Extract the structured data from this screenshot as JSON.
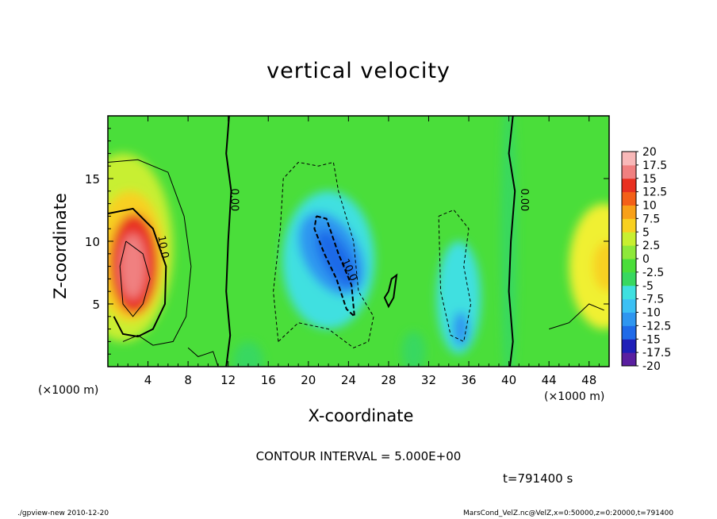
{
  "colors": {
    "scale": [
      "#5a1fa0",
      "#1f1fb8",
      "#1f3fd8",
      "#1f6ae8",
      "#2f96f0",
      "#3cc0f4",
      "#3fe0e0",
      "#3ee0a8",
      "#38d860",
      "#4ade3a",
      "#8ee83a",
      "#c8ef30",
      "#f0f030",
      "#f8d020",
      "#f8a018",
      "#f46018",
      "#e83020",
      "#e85050",
      "#f08080",
      "#f8b8b8"
    ]
  },
  "chart_data": {
    "type": "heatmap",
    "title": "vertical velocity",
    "xlabel": "X-coordinate",
    "ylabel": "Z-coordinate",
    "x_unit_label": "(×1000 m)",
    "y_unit_label": "(×1000 m)",
    "xlim": [
      0,
      50
    ],
    "ylim": [
      0,
      20
    ],
    "x_ticks": [
      4,
      8,
      12,
      16,
      20,
      24,
      28,
      32,
      36,
      40,
      44,
      48
    ],
    "y_ticks": [
      5,
      10,
      15
    ],
    "colorbar": {
      "levels": [
        -20,
        -17.5,
        -15,
        -12.5,
        -10,
        -7.5,
        -5,
        -2.5,
        0,
        2.5,
        5,
        7.5,
        10,
        12.5,
        15,
        17.5,
        20
      ],
      "level_labels": [
        "-20",
        "-17.5",
        "-15",
        "-12.5",
        "-10",
        "-7.5",
        "-5",
        "-2.5",
        "0",
        "2.5",
        "5",
        "7.5",
        "10",
        "12.5",
        "15",
        "17.5",
        "20"
      ]
    },
    "contour_labels": [
      {
        "text": "0.00",
        "x": 12.3,
        "z": 13.3,
        "angle": 90
      },
      {
        "text": "10.0",
        "x": 5.2,
        "z": 9.5,
        "angle": 80
      },
      {
        "text": "10.0",
        "x": 23.8,
        "z": 7.6,
        "angle": 65
      },
      {
        "text": "0.00",
        "x": 41.2,
        "z": 13.3,
        "angle": 90
      }
    ],
    "features": [
      {
        "x": 2.5,
        "z": 8.0,
        "value": 20
      },
      {
        "x": 22.5,
        "z": 9.0,
        "value": -12.5
      },
      {
        "x": 35.0,
        "z": 3.5,
        "value": -10
      },
      {
        "x": 49.0,
        "z": 8.0,
        "value": 7.5
      }
    ],
    "contour_interval": "CONTOUR INTERVAL = 5.000E+00",
    "time": "t=791400 s"
  },
  "footer": {
    "left": "./gpview-new  2010-12-20",
    "right": "MarsCond_VelZ.nc@VelZ,x=0:50000,z=0:20000,t=791400"
  }
}
